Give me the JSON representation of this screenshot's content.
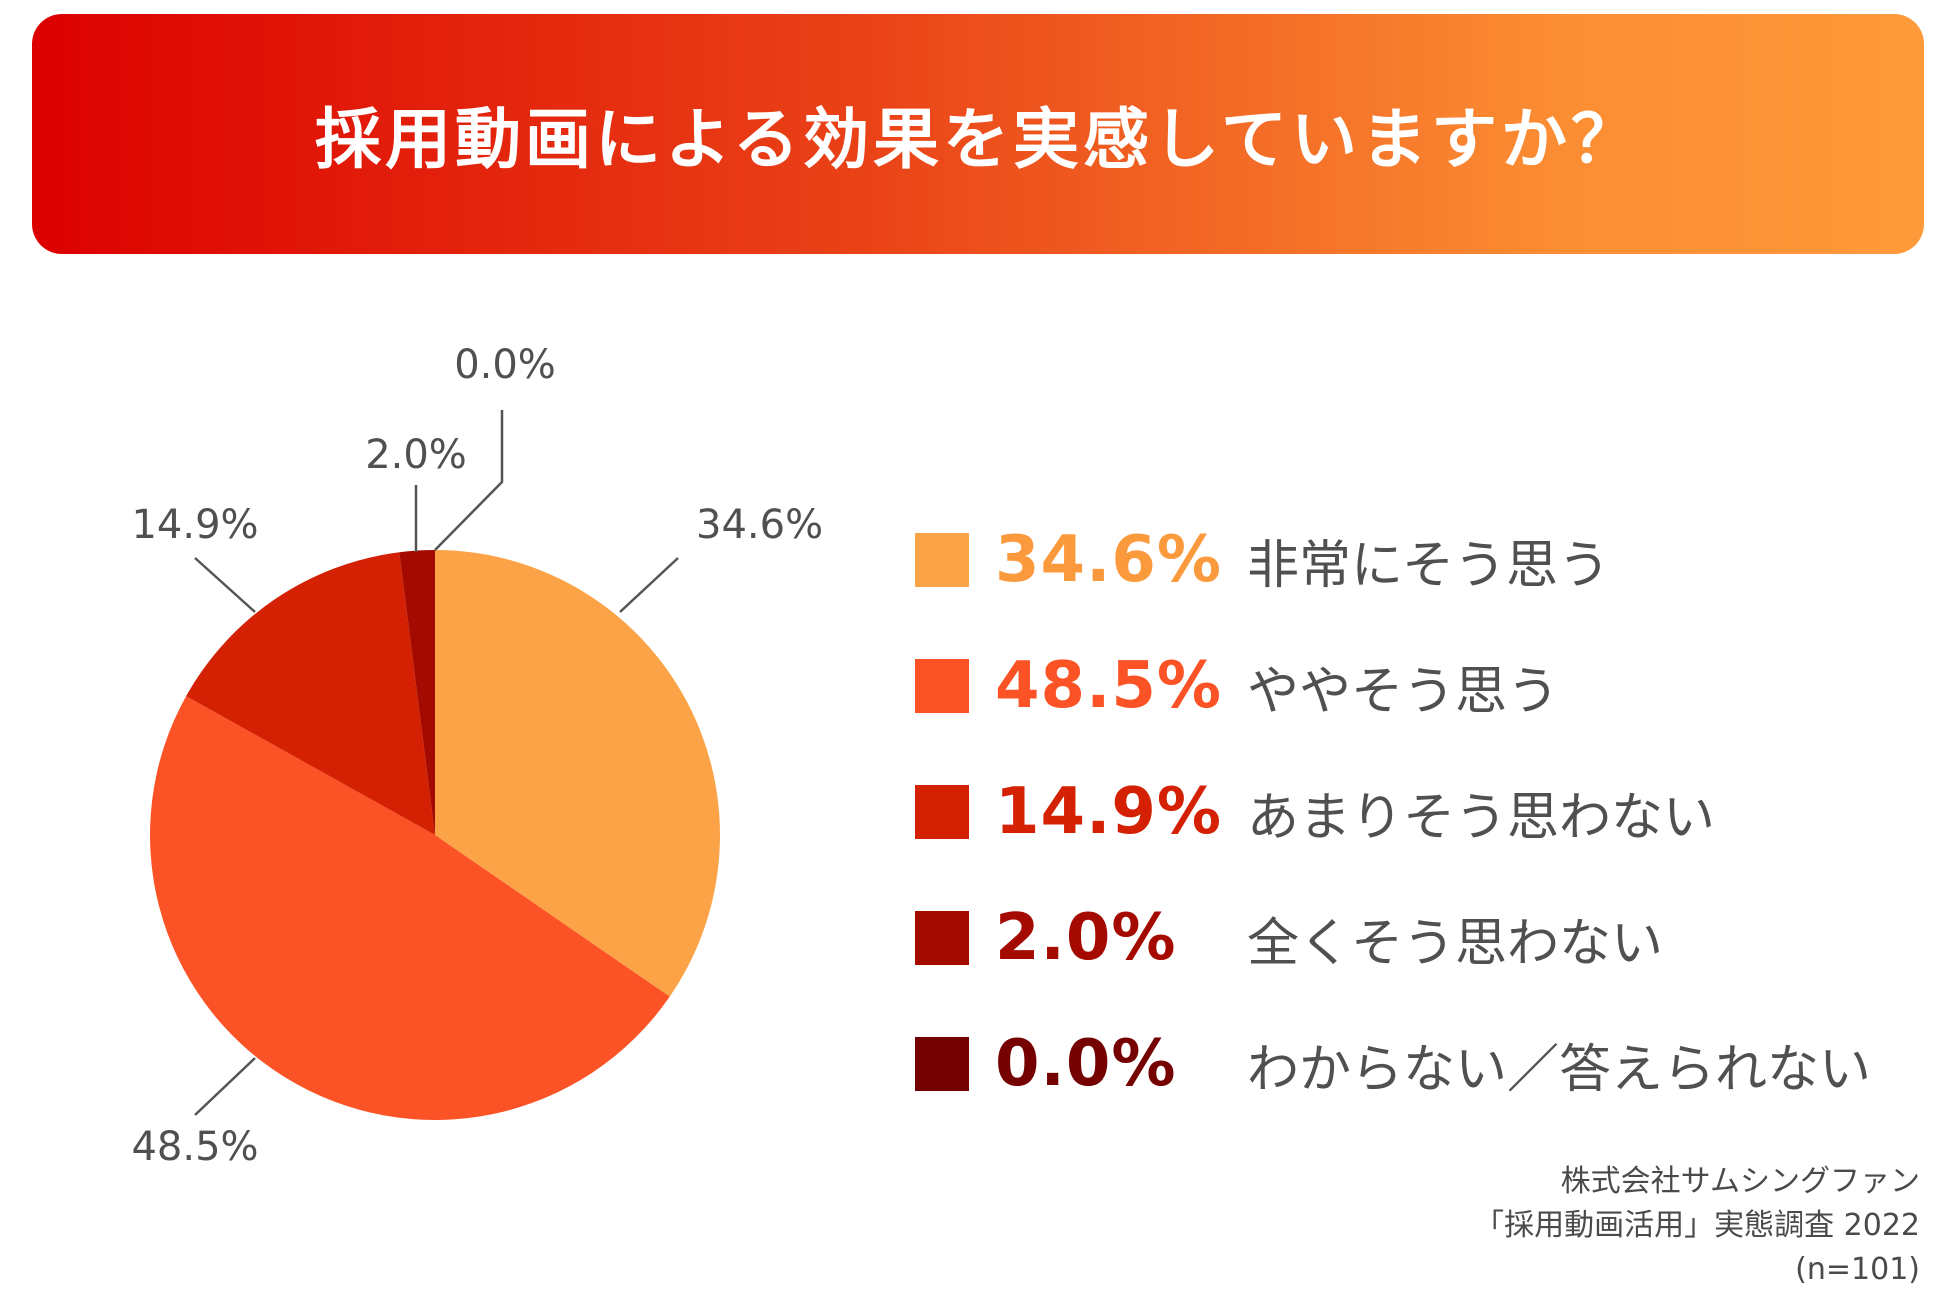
{
  "title": "採用動画による効果を実感していますか？",
  "chart_data": {
    "type": "pie",
    "slices": [
      {
        "label": "非常にそう思う",
        "value": 34.6,
        "display": "34.6%",
        "color": "#fba346"
      },
      {
        "label": "ややそう思う",
        "value": 48.5,
        "display": "48.5%",
        "color": "#fc5326"
      },
      {
        "label": "あまりそう思わない",
        "value": 14.9,
        "display": "14.9%",
        "color": "#d42104"
      },
      {
        "label": "全くそう思わない",
        "value": 2.0,
        "display": "2.0%",
        "color": "#a50a00"
      },
      {
        "label": "わからない／答えられない",
        "value": 0.0,
        "display": "0.0%",
        "color": "#750100"
      }
    ],
    "legend_placement": "right"
  },
  "legend_pct_colors": [
    "#fb9a3c",
    "#fc5326",
    "#d42104",
    "#a50a00",
    "#750100"
  ],
  "footer": {
    "line1": "株式会社サムシングファン",
    "line2": "「採用動画活用」実態調査 2022",
    "line3": "(n=101)"
  }
}
